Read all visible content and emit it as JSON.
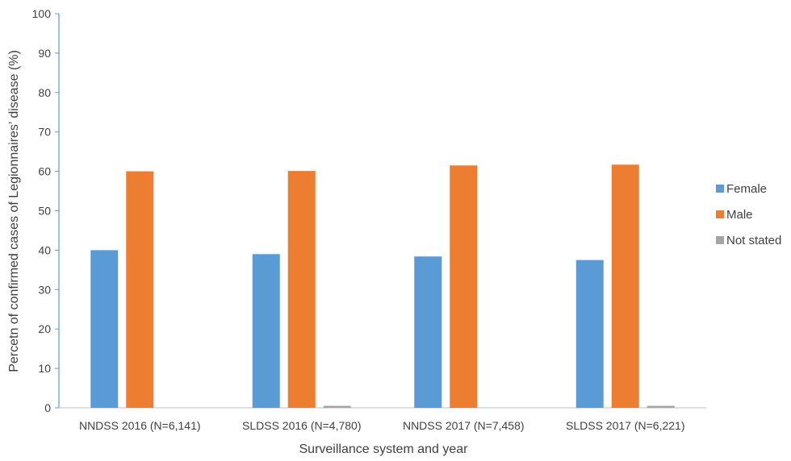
{
  "chart_data": {
    "type": "bar",
    "title": "",
    "xlabel": "Surveillance system and year",
    "ylabel": "Percetn of confirmed cases of Legionnaires’ disease  (%)",
    "ylim": [
      0,
      100
    ],
    "yticks": [
      0,
      10,
      20,
      30,
      40,
      50,
      60,
      70,
      80,
      90,
      100
    ],
    "grid": false,
    "legend_position": "right",
    "categories": [
      "NNDSS 2016 (N=6,141)",
      "SLDSS 2016 (N=4,780)",
      "NNDSS 2017 (N=7,458)",
      "SLDSS 2017 (N=6,221)"
    ],
    "series": [
      {
        "name": "Female",
        "color": "#5B9BD5",
        "values": [
          40.0,
          39.0,
          38.4,
          37.5
        ]
      },
      {
        "name": "Male",
        "color": "#ED7D31",
        "values": [
          60.0,
          60.1,
          61.5,
          61.7
        ]
      },
      {
        "name": "Not stated",
        "color": "#A5A5A5",
        "values": [
          0.0,
          0.5,
          0.0,
          0.5
        ]
      }
    ]
  }
}
